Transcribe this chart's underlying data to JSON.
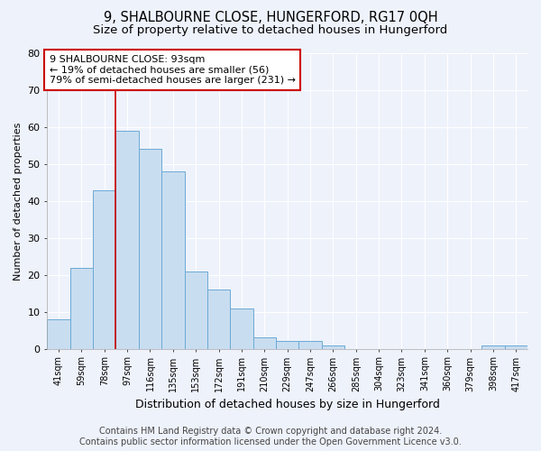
{
  "title": "9, SHALBOURNE CLOSE, HUNGERFORD, RG17 0QH",
  "subtitle": "Size of property relative to detached houses in Hungerford",
  "xlabel": "Distribution of detached houses by size in Hungerford",
  "ylabel": "Number of detached properties",
  "categories": [
    "41sqm",
    "59sqm",
    "78sqm",
    "97sqm",
    "116sqm",
    "135sqm",
    "153sqm",
    "172sqm",
    "191sqm",
    "210sqm",
    "229sqm",
    "247sqm",
    "266sqm",
    "285sqm",
    "304sqm",
    "323sqm",
    "341sqm",
    "360sqm",
    "379sqm",
    "398sqm",
    "417sqm"
  ],
  "values": [
    8,
    22,
    43,
    59,
    54,
    48,
    21,
    16,
    11,
    3,
    2,
    2,
    1,
    0,
    0,
    0,
    0,
    0,
    0,
    1,
    1
  ],
  "bar_color": "#c9ddf0",
  "bar_edge_color": "#6aaad4",
  "vline_index": 3,
  "vline_color": "#cc0000",
  "annotation_text": "9 SHALBOURNE CLOSE: 93sqm\n← 19% of detached houses are smaller (56)\n79% of semi-detached houses are larger (231) →",
  "annotation_box_color": "white",
  "annotation_box_edge": "#cc0000",
  "ylim": [
    0,
    80
  ],
  "yticks": [
    0,
    10,
    20,
    30,
    40,
    50,
    60,
    70,
    80
  ],
  "footer_line1": "Contains HM Land Registry data © Crown copyright and database right 2024.",
  "footer_line2": "Contains public sector information licensed under the Open Government Licence v3.0.",
  "background_color": "#eef2fb",
  "plot_bg_color": "#eef2fb",
  "grid_color": "white",
  "title_fontsize": 10.5,
  "subtitle_fontsize": 9.5,
  "footer_fontsize": 7,
  "ylabel_fontsize": 8,
  "xlabel_fontsize": 9
}
